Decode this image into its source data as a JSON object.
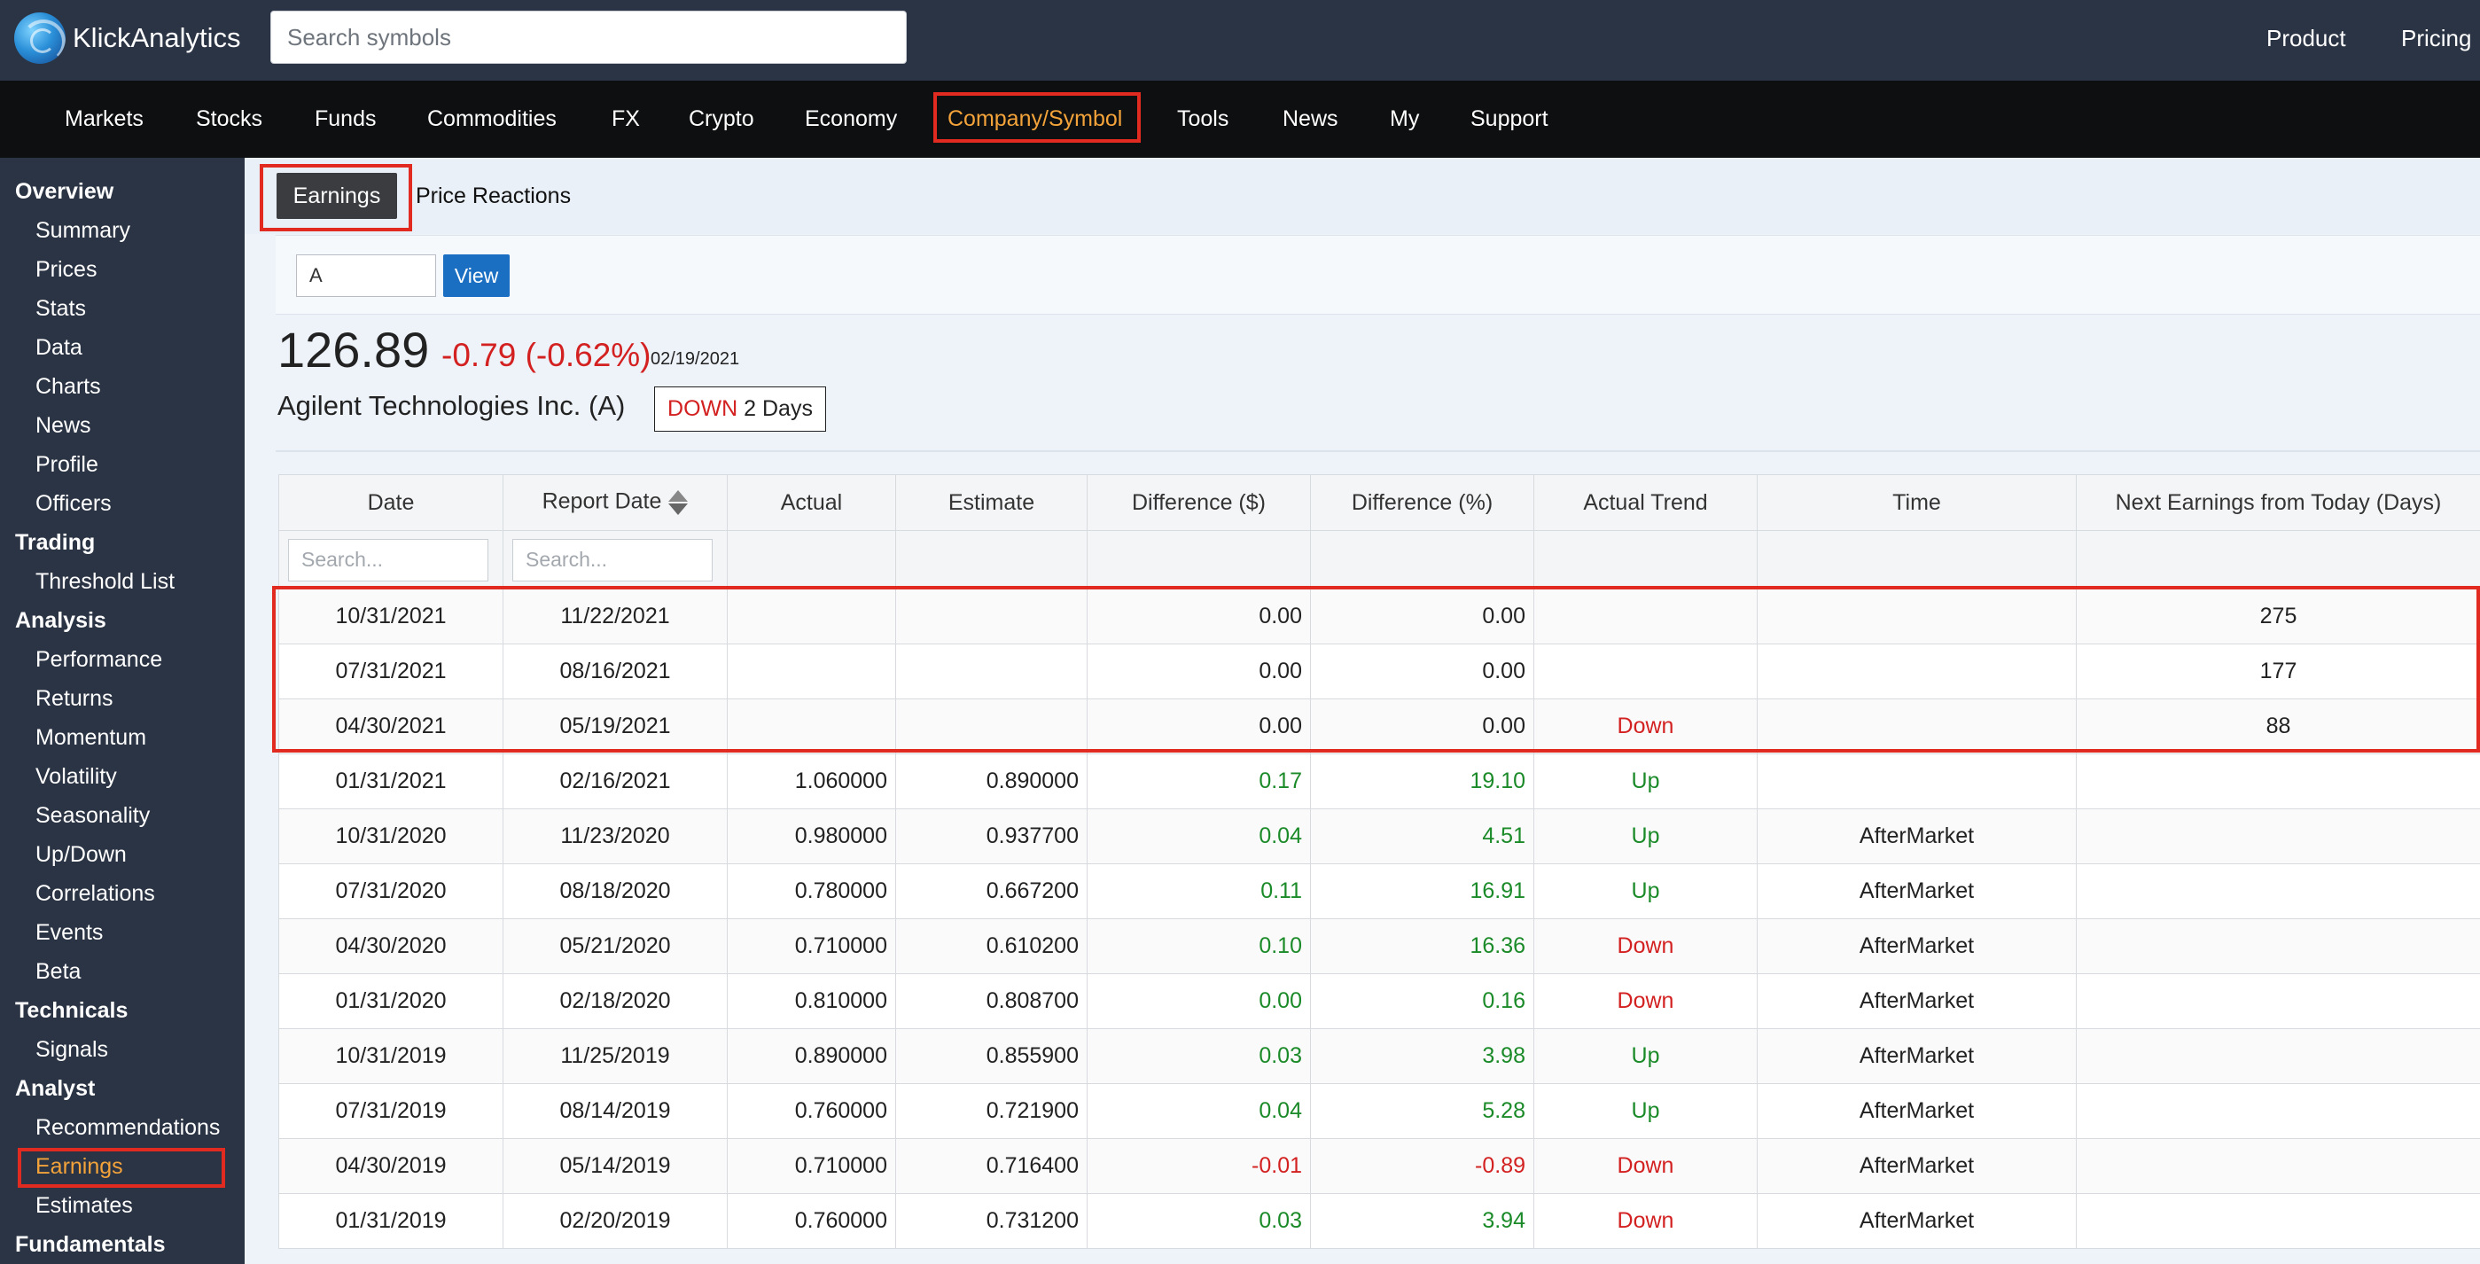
{
  "header": {
    "brand": "KlickAnalytics",
    "search_placeholder": "Search symbols",
    "links": [
      "Product",
      "Pricing"
    ]
  },
  "nav": {
    "items": [
      "Markets",
      "Stocks",
      "Funds",
      "Commodities",
      "FX",
      "Crypto",
      "Economy",
      "Company/Symbol",
      "Tools",
      "News",
      "My",
      "Support"
    ],
    "active": "Company/Symbol"
  },
  "sidebar": {
    "sections": [
      {
        "title": "Overview",
        "items": [
          "Summary",
          "Prices",
          "Stats",
          "Data",
          "Charts",
          "News",
          "Profile",
          "Officers"
        ]
      },
      {
        "title": "Trading",
        "items": [
          "Threshold List"
        ]
      },
      {
        "title": "Analysis",
        "items": [
          "Performance",
          "Returns",
          "Momentum",
          "Volatility",
          "Seasonality",
          "Up/Down",
          "Correlations",
          "Events",
          "Beta"
        ]
      },
      {
        "title": "Technicals",
        "items": [
          "Signals"
        ]
      },
      {
        "title": "Analyst",
        "items": [
          "Recommendations",
          "Earnings",
          "Estimates"
        ]
      },
      {
        "title": "Fundamentals",
        "items": []
      }
    ],
    "active": "Earnings"
  },
  "subtabs": {
    "earnings": "Earnings",
    "price_reactions": "Price Reactions"
  },
  "symbol_form": {
    "value": "A",
    "button": "View"
  },
  "quote": {
    "price": "126.89",
    "change": "-0.79 (-0.62%)",
    "date": "02/19/2021",
    "company": "Agilent Technologies Inc. (A)",
    "trend_direction": "DOWN",
    "trend_duration": "2 Days"
  },
  "table": {
    "columns": [
      "Date",
      "Report Date",
      "Actual",
      "Estimate",
      "Difference ($)",
      "Difference (%)",
      "Actual Trend",
      "Time",
      "Next Earnings from Today (Days)"
    ],
    "filter_placeholder": "Search...",
    "rows": [
      {
        "date": "10/31/2021",
        "report_date": "11/22/2021",
        "actual": "",
        "estimate": "",
        "diff_usd": "0.00",
        "diff_pct": "0.00",
        "trend": "",
        "time": "",
        "next_days": "275",
        "sign": "zero"
      },
      {
        "date": "07/31/2021",
        "report_date": "08/16/2021",
        "actual": "",
        "estimate": "",
        "diff_usd": "0.00",
        "diff_pct": "0.00",
        "trend": "",
        "time": "",
        "next_days": "177",
        "sign": "zero"
      },
      {
        "date": "04/30/2021",
        "report_date": "05/19/2021",
        "actual": "",
        "estimate": "",
        "diff_usd": "0.00",
        "diff_pct": "0.00",
        "trend": "Down",
        "time": "",
        "next_days": "88",
        "sign": "zero"
      },
      {
        "date": "01/31/2021",
        "report_date": "02/16/2021",
        "actual": "1.060000",
        "estimate": "0.890000",
        "diff_usd": "0.17",
        "diff_pct": "19.10",
        "trend": "Up",
        "time": "",
        "next_days": "",
        "sign": "pos"
      },
      {
        "date": "10/31/2020",
        "report_date": "11/23/2020",
        "actual": "0.980000",
        "estimate": "0.937700",
        "diff_usd": "0.04",
        "diff_pct": "4.51",
        "trend": "Up",
        "time": "AfterMarket",
        "next_days": "",
        "sign": "pos"
      },
      {
        "date": "07/31/2020",
        "report_date": "08/18/2020",
        "actual": "0.780000",
        "estimate": "0.667200",
        "diff_usd": "0.11",
        "diff_pct": "16.91",
        "trend": "Up",
        "time": "AfterMarket",
        "next_days": "",
        "sign": "pos"
      },
      {
        "date": "04/30/2020",
        "report_date": "05/21/2020",
        "actual": "0.710000",
        "estimate": "0.610200",
        "diff_usd": "0.10",
        "diff_pct": "16.36",
        "trend": "Down",
        "time": "AfterMarket",
        "next_days": "",
        "sign": "pos"
      },
      {
        "date": "01/31/2020",
        "report_date": "02/18/2020",
        "actual": "0.810000",
        "estimate": "0.808700",
        "diff_usd": "0.00",
        "diff_pct": "0.16",
        "trend": "Down",
        "time": "AfterMarket",
        "next_days": "",
        "sign": "pos"
      },
      {
        "date": "10/31/2019",
        "report_date": "11/25/2019",
        "actual": "0.890000",
        "estimate": "0.855900",
        "diff_usd": "0.03",
        "diff_pct": "3.98",
        "trend": "Up",
        "time": "AfterMarket",
        "next_days": "",
        "sign": "pos"
      },
      {
        "date": "07/31/2019",
        "report_date": "08/14/2019",
        "actual": "0.760000",
        "estimate": "0.721900",
        "diff_usd": "0.04",
        "diff_pct": "5.28",
        "trend": "Up",
        "time": "AfterMarket",
        "next_days": "",
        "sign": "pos"
      },
      {
        "date": "04/30/2019",
        "report_date": "05/14/2019",
        "actual": "0.710000",
        "estimate": "0.716400",
        "diff_usd": "-0.01",
        "diff_pct": "-0.89",
        "trend": "Down",
        "time": "AfterMarket",
        "next_days": "",
        "sign": "neg"
      },
      {
        "date": "01/31/2019",
        "report_date": "02/20/2019",
        "actual": "0.760000",
        "estimate": "0.731200",
        "diff_usd": "0.03",
        "diff_pct": "3.94",
        "trend": "Down",
        "time": "AfterMarket",
        "next_days": "",
        "sign": "pos"
      }
    ]
  },
  "colors": {
    "accent": "#f3a33a",
    "highlight": "#e22b20",
    "up": "#1b8a28",
    "down": "#d32020",
    "header_bg": "#2b3444"
  }
}
